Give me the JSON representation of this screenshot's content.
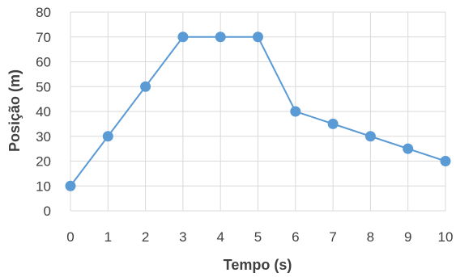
{
  "chart_data": {
    "type": "line",
    "xlabel": "Tempo (s)",
    "ylabel": "Posição (m)",
    "x": [
      0,
      1,
      2,
      3,
      4,
      5,
      6,
      7,
      8,
      9,
      10
    ],
    "series": [
      {
        "values": [
          10,
          30,
          50,
          70,
          70,
          70,
          40,
          35,
          30,
          25,
          20
        ]
      }
    ],
    "xlim": [
      0,
      10
    ],
    "ylim": [
      0,
      80
    ],
    "xticks": [
      0,
      1,
      2,
      3,
      4,
      5,
      6,
      7,
      8,
      9,
      10
    ],
    "yticks": [
      0,
      10,
      20,
      30,
      40,
      50,
      60,
      70,
      80
    ],
    "grid": true,
    "markers": true,
    "legend": "none",
    "colors": {
      "series": "#5b9bd5",
      "grid": "#d9d9d9",
      "text": "#404040"
    }
  }
}
